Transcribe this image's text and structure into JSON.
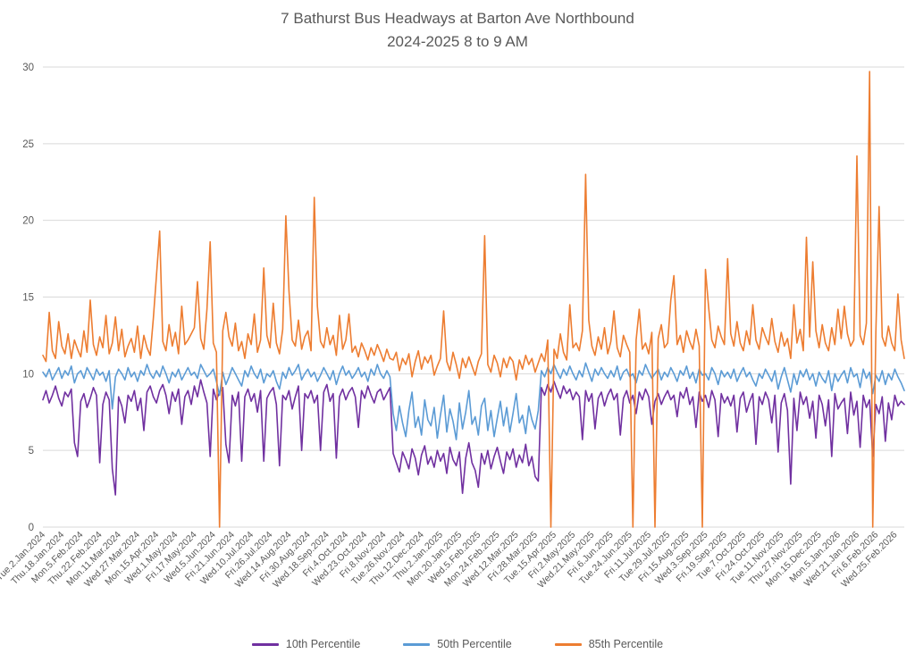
{
  "title": {
    "line1": "7 Bathurst Bus Headways at Barton Ave Northbound",
    "line2": "2024-2025 8 to 9 AM"
  },
  "colors": {
    "background": "#ffffff",
    "gridline": "#d9d9d9",
    "axis_text": "#595959",
    "title_text": "#595959",
    "series_10th": "#7030a0",
    "series_50th": "#5b9bd5",
    "series_85th": "#ed7d31"
  },
  "chart_data": {
    "type": "line",
    "title": "7 Bathurst Bus Headways at Barton Ave Northbound 2024-2025 8 to 9 AM",
    "xlabel": "",
    "ylabel": "",
    "grid": true,
    "legend_position": "bottom",
    "y_axis": {
      "min": 0,
      "max": 30,
      "tick_interval": 5,
      "ticks": [
        0,
        5,
        10,
        15,
        20,
        25,
        30
      ]
    },
    "x_axis": {
      "points_per_tick": 6,
      "tick_labels": [
        "Tue.2.Jan.2024",
        "Thu.18.Jan.2024",
        "Mon.5.Feb.2024",
        "Thu.22.Feb.2024",
        "Mon.11.Mar.2024",
        "Wed.27.Mar.2024",
        "Mon.15.Apr.2024",
        "Wed.1.May.2024",
        "Fri.17.May.2024",
        "Wed.5.Jun.2024",
        "Fri.21.Jun.2024",
        "Wed.10.Jul.2024",
        "Fri.26.Jul.2024",
        "Wed.14.Aug.2024",
        "Fri.30.Aug.2024",
        "Wed.18.Sep.2024",
        "Fri.4.Oct.2024",
        "Wed.23.Oct.2024",
        "Fri.8.Nov.2024",
        "Tue.26.Nov.2024",
        "Thu.12.Dec.2024",
        "Thu.2.Jan.2025",
        "Mon.20.Jan.2025",
        "Wed.5.Feb.2025",
        "Mon.24.Feb.2025",
        "Wed.12.Mar.2025",
        "Fri.28.Mar.2025",
        "Tue.15.Apr.2025",
        "Fri.2.May.2025",
        "Wed.21.May.2025",
        "Fri.6.Jun.2025",
        "Tue.24.Jun.2025",
        "Fri.11.Jul.2025",
        "Tue.29.Jul.2025",
        "Fri.15.Aug.2025",
        "Wed.3.Sep.2025",
        "Fri.19.Sep.2025",
        "Tue.7.Oct.2025",
        "Fri.24.Oct.2025",
        "Tue.11.Nov.2025",
        "Thu.27.Nov.2025",
        "Mon.15.Dec.2025",
        "Mon.5.Jan.2026",
        "Wed.21.Jan.2026",
        "Fri.6.Feb.2026",
        "Wed.25.Feb.2026"
      ]
    },
    "series": [
      {
        "name": "10th Percentile",
        "color": "#7030a0",
        "values": [
          8.3,
          8.9,
          8.1,
          8.6,
          9.2,
          8.4,
          7.9,
          8.8,
          8.5,
          9.0,
          5.5,
          4.6,
          8.2,
          8.7,
          7.8,
          8.4,
          9.1,
          8.6,
          4.2,
          8.0,
          8.8,
          8.3,
          3.8,
          2.1,
          8.5,
          7.9,
          6.8,
          8.6,
          8.2,
          8.9,
          7.6,
          8.4,
          6.3,
          8.8,
          9.2,
          8.5,
          8.1,
          8.9,
          9.3,
          8.6,
          7.4,
          8.8,
          8.2,
          9.0,
          6.7,
          8.5,
          8.9,
          8.0,
          9.2,
          8.5,
          9.6,
          8.8,
          8.1,
          4.6,
          9.0,
          8.3,
          8.8,
          9.1,
          5.4,
          4.2,
          8.6,
          7.9,
          8.8,
          4.3,
          8.5,
          9.0,
          8.2,
          8.7,
          7.5,
          8.9,
          4.3,
          8.4,
          8.8,
          9.1,
          8.0,
          4.0,
          8.6,
          8.3,
          8.9,
          7.7,
          8.5,
          9.2,
          5.0,
          8.7,
          8.4,
          8.9,
          8.1,
          8.6,
          5.0,
          8.8,
          9.3,
          8.2,
          8.7,
          4.5,
          8.5,
          9.0,
          8.3,
          8.8,
          9.1,
          8.5,
          6.5,
          8.9,
          8.4,
          9.2,
          8.6,
          8.1,
          8.8,
          9.0,
          8.3,
          8.7,
          9.1,
          4.8,
          4.2,
          3.6,
          4.9,
          4.4,
          3.8,
          5.1,
          4.5,
          3.4,
          4.7,
          5.3,
          4.1,
          4.6,
          3.9,
          5.0,
          4.3,
          4.8,
          3.5,
          5.2,
          4.4,
          4.0,
          4.9,
          2.2,
          4.5,
          5.5,
          4.2,
          3.7,
          2.6,
          4.8,
          4.1,
          5.0,
          3.8,
          4.6,
          5.2,
          4.3,
          3.5,
          4.9,
          4.4,
          5.1,
          3.9,
          4.7,
          4.2,
          5.4,
          4.0,
          4.6,
          3.3,
          3.0,
          9.1,
          8.6,
          9.3,
          8.8,
          9.5,
          8.9,
          8.4,
          9.2,
          8.7,
          9.0,
          8.3,
          8.8,
          8.5,
          5.7,
          8.9,
          8.2,
          8.7,
          6.4,
          8.4,
          8.8,
          7.9,
          8.6,
          9.0,
          8.3,
          8.7,
          6.0,
          8.4,
          8.9,
          8.1,
          8.6,
          7.4,
          8.8,
          8.3,
          9.0,
          8.5,
          6.7,
          8.2,
          8.7,
          8.0,
          8.5,
          8.9,
          8.3,
          8.6,
          7.2,
          8.8,
          8.4,
          9.1,
          8.0,
          8.5,
          6.5,
          8.8,
          8.2,
          8.6,
          7.8,
          8.9,
          8.3,
          5.9,
          8.7,
          8.1,
          8.5,
          7.9,
          8.6,
          6.2,
          8.4,
          8.8,
          7.5,
          8.2,
          8.7,
          5.4,
          8.5,
          8.0,
          8.8,
          8.3,
          6.8,
          8.6,
          4.9,
          8.1,
          8.7,
          7.6,
          2.8,
          8.4,
          6.3,
          8.8,
          8.0,
          8.5,
          7.1,
          8.2,
          5.8,
          8.6,
          8.0,
          6.6,
          8.3,
          4.6,
          8.7,
          7.7,
          8.1,
          8.4,
          6.1,
          8.8,
          7.3,
          8.2,
          5.2,
          8.6,
          7.8,
          8.3,
          4.6,
          8.0,
          7.4,
          8.5,
          5.6,
          8.1,
          7.0,
          8.6,
          7.9,
          8.2,
          8.0
        ]
      },
      {
        "name": "50th Percentile",
        "color": "#5b9bd5",
        "values": [
          10.1,
          9.8,
          10.3,
          9.6,
          10.0,
          10.4,
          9.7,
          10.2,
          9.9,
          10.5,
          9.4,
          10.0,
          10.2,
          9.7,
          10.4,
          10.0,
          9.6,
          10.3,
          9.9,
          10.1,
          9.5,
          10.2,
          7.7,
          9.8,
          10.3,
          10.0,
          9.6,
          10.4,
          9.8,
          10.1,
          9.5,
          10.2,
          9.9,
          10.6,
          10.0,
          9.7,
          10.2,
          9.8,
          10.5,
          10.0,
          9.4,
          10.1,
          9.8,
          10.3,
          9.6,
          10.0,
          10.4,
          9.9,
          10.1,
          9.7,
          10.6,
          10.2,
          9.8,
          10.0,
          10.3,
          9.5,
          8.6,
          10.1,
          9.3,
          9.8,
          10.4,
          10.0,
          9.6,
          9.2,
          10.2,
          9.8,
          10.5,
          10.0,
          9.7,
          10.3,
          9.4,
          10.0,
          9.8,
          10.2,
          9.5,
          9.0,
          10.1,
          9.7,
          10.4,
          9.9,
          10.2,
          10.6,
          9.6,
          10.0,
          10.3,
          9.8,
          10.1,
          9.5,
          9.9,
          10.4,
          10.0,
          9.6,
          10.2,
          9.3,
          10.0,
          10.5,
          9.9,
          10.2,
          9.7,
          10.0,
          10.4,
          9.8,
          10.1,
          9.5,
          10.3,
          9.9,
          10.6,
          10.0,
          9.7,
          10.2,
          9.8,
          7.4,
          6.3,
          7.9,
          6.8,
          5.9,
          7.6,
          8.8,
          6.5,
          7.2,
          6.0,
          8.3,
          7.0,
          6.6,
          7.8,
          5.8,
          7.3,
          8.6,
          6.2,
          7.7,
          6.9,
          5.7,
          8.1,
          6.4,
          7.5,
          8.9,
          6.7,
          7.2,
          6.0,
          7.9,
          8.4,
          6.3,
          7.6,
          5.9,
          7.1,
          8.2,
          6.6,
          7.8,
          6.2,
          7.4,
          8.7,
          6.8,
          7.3,
          6.1,
          7.9,
          7.0,
          6.4,
          7.6,
          10.2,
          9.8,
          10.4,
          10.0,
          10.6,
          10.1,
          9.7,
          10.3,
          9.9,
          10.5,
          10.0,
          9.6,
          10.2,
          9.8,
          10.7,
          10.1,
          9.5,
          10.3,
          9.9,
          10.4,
          10.0,
          9.7,
          10.2,
          9.8,
          10.5,
          9.6,
          10.1,
          10.3,
          9.8,
          10.0,
          9.4,
          10.2,
          9.9,
          10.6,
          10.1,
          9.7,
          10.0,
          10.3,
          9.6,
          10.1,
          9.8,
          10.4,
          10.0,
          9.5,
          10.2,
          9.9,
          10.5,
          9.7,
          10.1,
          9.4,
          10.3,
          9.9,
          10.0,
          9.6,
          10.4,
          10.0,
          9.3,
          10.2,
          9.8,
          10.1,
          9.7,
          10.3,
          9.5,
          10.0,
          10.4,
          9.8,
          10.1,
          9.6,
          9.2,
          10.0,
          9.7,
          10.3,
          9.9,
          9.5,
          10.2,
          9.0,
          9.8,
          10.4,
          9.6,
          8.8,
          10.0,
          9.3,
          10.2,
          9.8,
          10.3,
          9.6,
          10.0,
          9.2,
          10.1,
          9.7,
          9.4,
          10.2,
          8.9,
          10.0,
          9.5,
          9.9,
          10.2,
          9.4,
          10.4,
          9.8,
          10.0,
          9.1,
          10.3,
          9.7,
          10.1,
          8.7,
          9.9,
          9.5,
          10.2,
          9.3,
          10.0,
          9.6,
          10.3,
          9.8,
          9.4,
          8.9
        ]
      },
      {
        "name": "85th Percentile",
        "color": "#ed7d31",
        "values": [
          11.2,
          10.8,
          14.0,
          11.5,
          11.0,
          13.4,
          11.8,
          11.3,
          12.6,
          11.0,
          12.2,
          11.6,
          11.1,
          12.8,
          11.4,
          14.8,
          11.9,
          11.2,
          12.4,
          11.7,
          13.8,
          11.3,
          12.0,
          13.7,
          11.5,
          12.9,
          11.1,
          11.8,
          12.3,
          11.4,
          13.1,
          11.0,
          12.5,
          11.7,
          11.2,
          13.6,
          16.4,
          19.3,
          12.1,
          11.5,
          13.2,
          11.8,
          12.7,
          11.3,
          14.4,
          11.9,
          12.2,
          12.6,
          13.0,
          16.0,
          12.3,
          11.6,
          14.2,
          18.6,
          12.0,
          11.4,
          0.0,
          12.8,
          14.0,
          12.4,
          11.8,
          13.3,
          11.5,
          12.1,
          11.0,
          12.6,
          11.9,
          13.9,
          11.4,
          12.2,
          16.9,
          12.5,
          11.7,
          14.6,
          12.0,
          11.3,
          12.9,
          20.3,
          15.4,
          12.2,
          11.8,
          13.5,
          11.6,
          12.4,
          12.8,
          11.5,
          21.5,
          14.4,
          12.1,
          11.7,
          13.0,
          11.9,
          12.5,
          11.2,
          13.8,
          11.6,
          12.2,
          13.9,
          11.4,
          11.8,
          11.1,
          12.0,
          11.5,
          10.9,
          11.7,
          11.2,
          11.9,
          11.4,
          10.8,
          11.6,
          11.0,
          10.9,
          11.4,
          10.2,
          11.0,
          10.6,
          11.3,
          9.8,
          10.8,
          11.5,
          10.3,
          11.1,
          10.7,
          11.2,
          9.9,
          10.5,
          11.0,
          14.1,
          10.8,
          10.2,
          11.4,
          10.6,
          9.7,
          11.0,
          10.4,
          11.1,
          10.5,
          9.9,
          10.8,
          11.3,
          19.0,
          10.6,
          10.1,
          11.2,
          10.7,
          9.8,
          11.0,
          10.4,
          11.1,
          10.8,
          9.6,
          10.9,
          10.3,
          11.2,
          10.6,
          11.0,
          10.1,
          10.7,
          11.3,
          10.8,
          12.2,
          0.0,
          11.6,
          11.0,
          12.6,
          11.4,
          10.9,
          14.5,
          11.7,
          12.0,
          11.5,
          12.8,
          23.0,
          13.5,
          11.8,
          11.2,
          12.4,
          11.6,
          13.0,
          11.3,
          12.1,
          14.1,
          11.7,
          11.1,
          12.5,
          11.9,
          11.4,
          0.0,
          12.2,
          14.2,
          11.6,
          12.0,
          11.3,
          12.7,
          0.0,
          12.3,
          13.2,
          11.7,
          12.0,
          14.8,
          16.4,
          11.9,
          12.5,
          11.4,
          12.8,
          12.1,
          11.6,
          12.9,
          11.8,
          0.0,
          16.8,
          14.3,
          12.2,
          11.7,
          13.1,
          12.4,
          11.9,
          17.5,
          12.6,
          11.8,
          13.4,
          12.0,
          11.5,
          12.8,
          11.9,
          14.5,
          12.2,
          11.6,
          13.0,
          12.4,
          11.9,
          13.6,
          12.1,
          11.4,
          12.7,
          11.8,
          12.3,
          11.0,
          14.5,
          12.0,
          12.9,
          11.5,
          18.9,
          12.4,
          17.3,
          12.8,
          11.7,
          13.2,
          12.0,
          11.5,
          13.0,
          11.9,
          14.2,
          12.3,
          14.4,
          12.6,
          11.8,
          12.2,
          24.2,
          12.5,
          11.9,
          13.3,
          29.7,
          0.0,
          12.7,
          20.9,
          12.4,
          11.8,
          13.1,
          12.0,
          11.5,
          15.2,
          12.2,
          11.0
        ]
      }
    ]
  }
}
